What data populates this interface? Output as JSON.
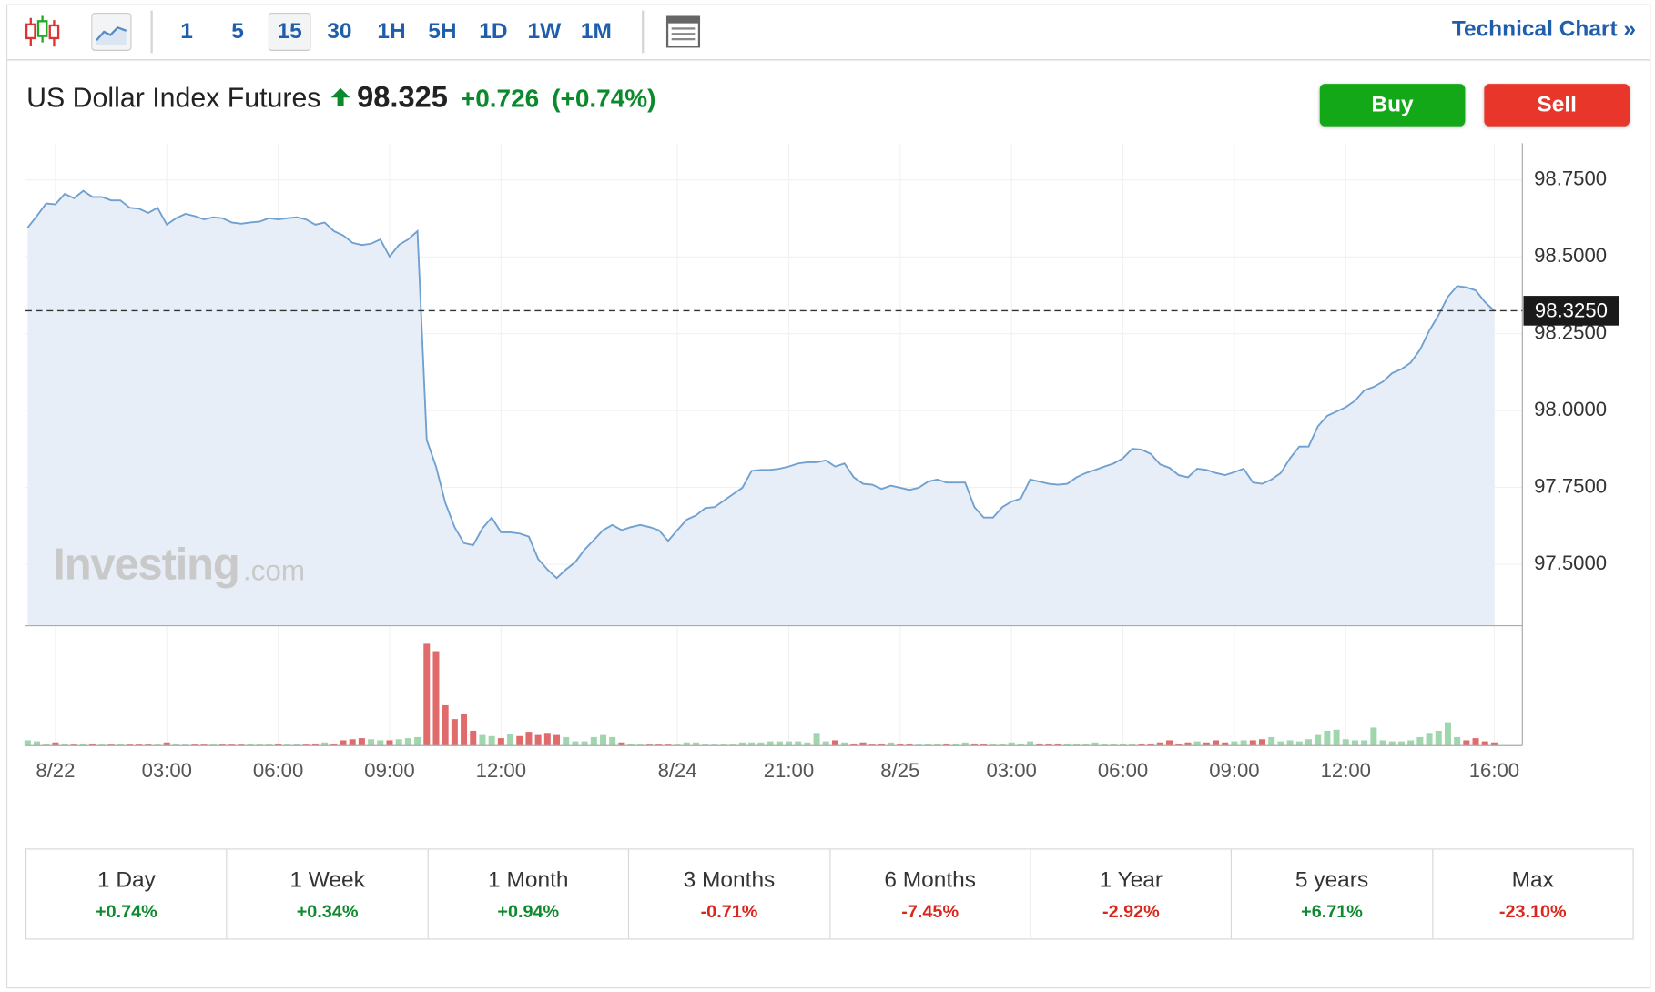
{
  "toolbar": {
    "intervals": [
      "1",
      "5",
      "15",
      "30",
      "1H",
      "5H",
      "1D",
      "1W",
      "1M"
    ],
    "selected": 2,
    "link": "Technical Chart »"
  },
  "header": {
    "title": "US Dollar Index Futures",
    "price": "98.325",
    "change": "+0.726",
    "change_pct": "(+0.74%)",
    "buy": "Buy",
    "sell": "Sell"
  },
  "watermark": {
    "brand": "Investing",
    "suffix": ".com"
  },
  "chart_data": {
    "type": "area",
    "ylim": [
      97.3,
      98.87
    ],
    "yticks": [
      {
        "value": 97.5,
        "label": "97.5000"
      },
      {
        "value": 97.75,
        "label": "97.7500"
      },
      {
        "value": 98,
        "label": "98.0000"
      },
      {
        "value": 98.25,
        "label": "98.2500"
      },
      {
        "value": 98.5,
        "label": "98.5000"
      },
      {
        "value": 98.75,
        "label": "98.7500"
      }
    ],
    "grid": true,
    "last_price": {
      "value": 98.325,
      "label": "98.3250"
    },
    "categories": [
      null,
      null,
      null,
      "8/22",
      null,
      null,
      null,
      null,
      null,
      null,
      null,
      null,
      null,
      null,
      null,
      "03:00",
      null,
      null,
      null,
      null,
      null,
      null,
      null,
      null,
      null,
      null,
      null,
      "06:00",
      null,
      null,
      null,
      null,
      null,
      null,
      null,
      null,
      null,
      null,
      null,
      "09:00",
      null,
      null,
      null,
      null,
      null,
      null,
      null,
      null,
      null,
      null,
      null,
      "12:00",
      null,
      null,
      null,
      null,
      null,
      null,
      null,
      null,
      null,
      null,
      null,
      null,
      null,
      null,
      null,
      null,
      null,
      null,
      "8/24",
      null,
      null,
      null,
      null,
      null,
      null,
      null,
      null,
      null,
      null,
      null,
      "21:00",
      null,
      null,
      null,
      null,
      null,
      null,
      null,
      null,
      null,
      null,
      null,
      "8/25",
      null,
      null,
      null,
      null,
      null,
      null,
      null,
      null,
      null,
      null,
      null,
      "03:00",
      null,
      null,
      null,
      null,
      null,
      null,
      null,
      null,
      null,
      null,
      null,
      "06:00",
      null,
      null,
      null,
      null,
      null,
      null,
      null,
      null,
      null,
      null,
      null,
      "09:00",
      null,
      null,
      null,
      null,
      null,
      null,
      null,
      null,
      null,
      null,
      null,
      "12:00",
      null,
      null,
      null,
      null,
      null,
      null,
      null,
      null,
      null,
      null,
      null,
      null,
      null,
      null,
      null,
      "16:00"
    ],
    "series": [
      {
        "color": "#6fa0d0",
        "fill": "#e8eef7",
        "values": [
          98.595,
          98.633,
          98.674,
          98.671,
          98.705,
          98.691,
          98.715,
          98.695,
          98.695,
          98.684,
          98.684,
          98.66,
          98.657,
          98.643,
          98.66,
          98.605,
          98.626,
          98.64,
          98.633,
          98.622,
          98.629,
          98.626,
          98.612,
          98.608,
          98.612,
          98.615,
          98.626,
          98.622,
          98.626,
          98.629,
          98.622,
          98.605,
          98.612,
          98.584,
          98.57,
          98.546,
          98.539,
          98.543,
          98.557,
          98.501,
          98.539,
          98.557,
          98.584,
          97.904,
          97.818,
          97.7,
          97.621,
          97.569,
          97.562,
          97.617,
          97.652,
          97.604,
          97.604,
          97.6,
          97.59,
          97.517,
          97.483,
          97.455,
          97.483,
          97.507,
          97.548,
          97.579,
          97.611,
          97.628,
          97.611,
          97.621,
          97.628,
          97.621,
          97.611,
          97.576,
          97.611,
          97.645,
          97.659,
          97.683,
          97.686,
          97.707,
          97.728,
          97.749,
          97.804,
          97.807,
          97.807,
          97.811,
          97.818,
          97.828,
          97.832,
          97.832,
          97.838,
          97.818,
          97.828,
          97.783,
          97.762,
          97.759,
          97.745,
          97.756,
          97.749,
          97.742,
          97.749,
          97.769,
          97.776,
          97.766,
          97.766,
          97.766,
          97.686,
          97.652,
          97.652,
          97.686,
          97.704,
          97.714,
          97.776,
          97.769,
          97.762,
          97.759,
          97.762,
          97.783,
          97.797,
          97.807,
          97.818,
          97.828,
          97.845,
          97.876,
          97.873,
          97.859,
          97.825,
          97.814,
          97.79,
          97.783,
          97.811,
          97.807,
          97.797,
          97.79,
          97.8,
          97.811,
          97.766,
          97.762,
          97.776,
          97.797,
          97.845,
          97.883,
          97.883,
          97.949,
          97.983,
          97.997,
          98.011,
          98.032,
          98.066,
          98.077,
          98.094,
          98.122,
          98.135,
          98.156,
          98.198,
          98.26,
          98.311,
          98.37,
          98.405,
          98.401,
          98.391,
          98.353,
          98.325
        ]
      }
    ],
    "volume": {
      "up_color": "#9fd6ae",
      "down_color": "#e06b6b",
      "values": [
        5,
        4,
        2,
        3,
        2,
        1,
        2,
        2,
        1,
        1,
        2,
        1,
        1,
        1,
        1,
        3,
        2,
        1,
        1,
        1,
        1,
        1,
        1,
        1,
        2,
        1,
        1,
        2,
        1,
        2,
        1,
        2,
        3,
        2,
        5,
        6,
        7,
        6,
        5,
        5,
        6,
        7,
        8,
        96,
        89,
        38,
        25,
        30,
        14,
        10,
        9,
        7,
        11,
        9,
        13,
        10,
        12,
        10,
        8,
        4,
        4,
        8,
        10,
        8,
        3,
        2,
        1,
        1,
        1,
        1,
        1,
        3,
        3,
        1,
        1,
        1,
        1,
        3,
        3,
        3,
        4,
        4,
        4,
        4,
        3,
        12,
        4,
        5,
        3,
        2,
        3,
        1,
        2,
        3,
        2,
        2,
        1,
        2,
        2,
        2,
        2,
        3,
        2,
        2,
        2,
        2,
        3,
        2,
        4,
        2,
        2,
        2,
        2,
        2,
        2,
        3,
        2,
        2,
        2,
        2,
        2,
        2,
        3,
        5,
        2,
        3,
        4,
        3,
        5,
        3,
        4,
        5,
        5,
        6,
        8,
        4,
        5,
        4,
        6,
        10,
        14,
        15,
        6,
        5,
        5,
        17,
        5,
        4,
        4,
        5,
        8,
        12,
        14,
        22,
        8,
        5,
        7,
        4,
        3
      ]
    }
  },
  "performance": [
    {
      "period": "1 Day",
      "change": "+0.74%"
    },
    {
      "period": "1 Week",
      "change": "+0.34%"
    },
    {
      "period": "1 Month",
      "change": "+0.94%"
    },
    {
      "period": "3 Months",
      "change": "-0.71%"
    },
    {
      "period": "6 Months",
      "change": "-7.45%"
    },
    {
      "period": "1 Year",
      "change": "-2.92%"
    },
    {
      "period": "5 years",
      "change": "+6.71%"
    },
    {
      "period": "Max",
      "change": "-23.10%"
    }
  ]
}
